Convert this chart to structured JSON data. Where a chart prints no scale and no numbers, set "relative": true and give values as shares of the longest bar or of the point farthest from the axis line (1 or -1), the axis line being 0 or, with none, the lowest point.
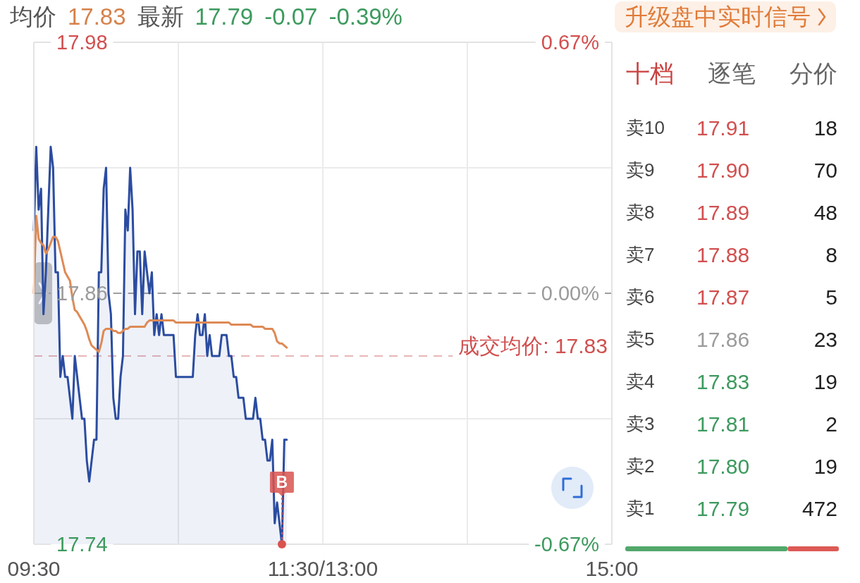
{
  "chart_data": [
    {
      "type": "area",
      "annotations": [
        "均价",
        "17.83",
        "最新",
        "17.79",
        "-0.07",
        "-0.39%",
        "升级盘中实时信号",
        {
          "text": "B",
          "y": 17.74
        }
      ],
      "categories": [
        "09:30",
        null,
        null,
        null,
        null,
        null,
        null,
        null,
        null,
        null,
        null,
        null,
        null,
        null,
        null,
        null,
        null,
        null,
        null,
        null,
        null,
        null,
        null,
        null,
        null,
        null,
        null,
        null,
        null,
        null,
        null,
        null,
        null,
        null,
        null,
        null,
        null,
        null,
        null,
        null,
        null,
        null,
        null,
        null,
        null,
        null,
        null,
        null,
        null,
        null,
        null,
        null,
        null,
        null,
        null,
        null,
        null,
        null,
        null,
        null,
        null,
        null,
        null,
        null,
        null,
        null,
        null,
        null,
        null,
        null,
        null,
        null,
        null,
        null,
        null,
        null,
        null,
        null,
        null,
        null,
        null,
        null,
        null,
        null,
        null,
        null,
        null,
        null,
        null,
        null,
        null,
        null,
        null,
        null,
        null,
        null,
        null,
        null,
        null,
        null,
        null,
        null,
        null,
        null,
        null,
        null,
        null,
        null,
        null,
        null,
        null,
        null,
        null,
        null,
        null,
        null,
        null,
        null,
        null,
        null,
        "11:30/13:00",
        null,
        null,
        null,
        null,
        null,
        null,
        null,
        null,
        null,
        null,
        null,
        null,
        null,
        null,
        null,
        null,
        null,
        null,
        null,
        null,
        null,
        null,
        null,
        null,
        null,
        null,
        null,
        null,
        null,
        null,
        null,
        null,
        null,
        null,
        null,
        null,
        null,
        null,
        null,
        null,
        null,
        null,
        null,
        null,
        null,
        null,
        null,
        null,
        null,
        null,
        null,
        null,
        null,
        null,
        null,
        null,
        null,
        null,
        null,
        null,
        null,
        null,
        null,
        null,
        null,
        null,
        null,
        null,
        null,
        null,
        null,
        null,
        null,
        null,
        null,
        null,
        null,
        null,
        null,
        null,
        null,
        null,
        null,
        null,
        null,
        null,
        null,
        null,
        null,
        null,
        null,
        null,
        null,
        null,
        null,
        null,
        null,
        null,
        null,
        null,
        null,
        null,
        null,
        null,
        null,
        null,
        null,
        null,
        null,
        null,
        null,
        null,
        null,
        null,
        null,
        null,
        null,
        null,
        null,
        "15:00"
      ],
      "ylim": [
        17.74,
        17.98
      ],
      "yticks": [
        17.74,
        {
          "value": 17.8,
          "label": null
        },
        17.86,
        {
          "value": 17.92,
          "label": null
        },
        17.98
      ],
      "y2lim": [
        -0.67,
        0.67
      ],
      "y2ticks": [
        {
          "value": -0.67,
          "label": "-0.67%"
        },
        {
          "value": 0,
          "label": "0.00%"
        },
        {
          "value": 0.67,
          "label": "0.67%"
        }
      ],
      "grid": true,
      "ref_lines": [
        {
          "axis": "y",
          "value": 17.86,
          "color": "#9e9e9e",
          "line_style": "dashed"
        },
        {
          "axis": "y",
          "value": 17.83,
          "label": "成交均价: 17.83",
          "color": "#e8b6b8",
          "line_style": "dashed"
        }
      ],
      "series": [
        {
          "type": "area",
          "color": "#2b4ca0",
          "values": [
            17.89,
            17.93,
            17.9,
            17.91,
            17.85,
            17.87,
            17.9,
            17.93,
            17.92,
            17.87,
            17.87,
            17.82,
            17.83,
            17.82,
            17.82,
            17.81,
            17.8,
            17.83,
            17.82,
            17.81,
            17.8,
            17.8,
            17.78,
            17.77,
            17.78,
            17.79,
            17.79,
            17.87,
            17.87,
            17.91,
            17.92,
            17.86,
            17.85,
            17.81,
            17.8,
            17.8,
            17.82,
            17.83,
            17.9,
            17.89,
            17.92,
            17.9,
            17.85,
            17.88,
            17.88,
            17.85,
            17.88,
            17.87,
            17.86,
            17.87,
            17.84,
            17.85,
            17.84,
            17.85,
            17.84,
            17.84,
            17.84,
            17.84,
            17.84,
            17.82,
            17.82,
            17.82,
            17.82,
            17.82,
            17.82,
            17.82,
            17.82,
            17.84,
            17.85,
            17.84,
            17.84,
            17.85,
            17.83,
            17.84,
            17.83,
            17.83,
            17.83,
            17.83,
            17.84,
            17.84,
            17.84,
            17.83,
            17.83,
            17.82,
            17.82,
            17.81,
            17.81,
            17.81,
            17.8,
            17.8,
            17.8,
            17.8,
            17.81,
            17.8,
            17.8,
            17.79,
            17.79,
            17.78,
            17.78,
            17.79,
            17.75,
            17.76,
            17.75,
            17.74,
            17.79,
            17.79,
            null,
            null,
            null,
            null,
            null,
            null,
            null,
            null,
            null,
            null,
            null,
            null,
            null,
            null,
            null,
            null,
            null,
            null,
            null,
            null,
            null,
            null,
            null,
            null,
            null,
            null,
            null,
            null,
            null,
            null,
            null,
            null,
            null,
            null,
            null,
            null,
            null,
            null,
            null,
            null,
            null,
            null,
            null,
            null,
            null,
            null,
            null,
            null,
            null,
            null,
            null,
            null,
            null,
            null,
            null,
            null,
            null,
            null,
            null,
            null,
            null,
            null,
            null,
            null,
            null,
            null,
            null,
            null,
            null,
            null,
            null,
            null,
            null,
            null,
            null,
            null,
            null,
            null,
            null,
            null,
            null,
            null,
            null,
            null,
            null,
            null,
            null,
            null,
            null,
            null,
            null,
            null,
            null,
            null,
            null,
            null,
            null,
            null,
            null,
            null,
            null,
            null,
            null,
            null,
            null,
            null,
            null,
            null,
            null,
            null,
            null,
            null,
            null,
            null,
            null,
            null,
            null,
            null,
            null,
            null,
            null,
            null,
            null,
            null,
            null,
            null,
            null,
            null,
            null,
            null,
            null,
            null,
            null,
            null,
            null
          ]
        },
        {
          "type": "line",
          "color": "#de8a55",
          "values": [
            17.86,
            17.897,
            17.886,
            17.884,
            17.883,
            17.879,
            17.881,
            17.884,
            17.887,
            17.887,
            17.885,
            17.88,
            17.875,
            17.87,
            17.868,
            17.866,
            17.858,
            17.852,
            17.851,
            17.849,
            17.847,
            17.845,
            17.842,
            17.838,
            17.835,
            17.834,
            17.833,
            17.832,
            17.836,
            17.842,
            17.843,
            17.843,
            17.843,
            17.842,
            17.842,
            17.841,
            17.841,
            17.842,
            17.843,
            17.843,
            17.844,
            17.844,
            17.844,
            17.844,
            17.844,
            17.844,
            17.844,
            17.846,
            17.847,
            17.847,
            17.847,
            17.847,
            17.847,
            17.847,
            17.847,
            17.847,
            17.847,
            17.847,
            17.847,
            17.846,
            17.846,
            17.846,
            17.846,
            17.846,
            17.846,
            17.846,
            17.846,
            17.846,
            17.846,
            17.846,
            17.846,
            17.846,
            17.846,
            17.846,
            17.846,
            17.846,
            17.846,
            17.846,
            17.846,
            17.846,
            17.846,
            17.846,
            17.845,
            17.845,
            17.845,
            17.845,
            17.845,
            17.845,
            17.845,
            17.845,
            17.845,
            17.844,
            17.844,
            17.844,
            17.844,
            17.844,
            17.843,
            17.843,
            17.843,
            17.843,
            17.841,
            17.837,
            17.836,
            17.836,
            17.835,
            17.834,
            null,
            null,
            null,
            null,
            null,
            null,
            null,
            null,
            null,
            null,
            null,
            null,
            null,
            null,
            null,
            null,
            null,
            null,
            null,
            null,
            null,
            null,
            null,
            null,
            null,
            null,
            null,
            null,
            null,
            null,
            null,
            null,
            null,
            null,
            null,
            null,
            null,
            null,
            null,
            null,
            null,
            null,
            null,
            null,
            null,
            null,
            null,
            null,
            null,
            null,
            null,
            null,
            null,
            null,
            null,
            null,
            null,
            null,
            null,
            null,
            null,
            null,
            null,
            null,
            null,
            null,
            null,
            null,
            null,
            null,
            null,
            null,
            null,
            null,
            null,
            null,
            null,
            null,
            null,
            null,
            null,
            null,
            null,
            null,
            null,
            null,
            null,
            null,
            null,
            null,
            null,
            null,
            null,
            null,
            null,
            null,
            null,
            null,
            null,
            null,
            null,
            null,
            null,
            null,
            null,
            null,
            null,
            null,
            null,
            null,
            null,
            null,
            null,
            null,
            null,
            null,
            null,
            null,
            null,
            null,
            null,
            null,
            null,
            null,
            null,
            null,
            null,
            null,
            null,
            null,
            null,
            null,
            null,
            null,
            null
          ]
        }
      ]
    },
    {
      "type": "other",
      "annotations": [
        "十档",
        "逐笔",
        "分价"
      ],
      "categories": [
        "卖10",
        "卖9",
        "卖8",
        "卖7",
        "卖6",
        "卖5",
        "卖4",
        "卖3",
        "卖2",
        "卖1"
      ],
      "data_labels": true,
      "series": [
        {
          "values": [
            17.91,
            17.9,
            17.89,
            17.88,
            17.87,
            17.86,
            17.83,
            17.81,
            17.8,
            17.79
          ],
          "value_labels": [
            "17.91",
            "17.90",
            "17.89",
            "17.88",
            "17.87",
            "17.86",
            "17.83",
            "17.81",
            "17.80",
            "17.79"
          ],
          "colors": [
            "#d24f4f",
            "#d24f4f",
            "#d24f4f",
            "#d24f4f",
            "#d24f4f",
            "#9b9b9b",
            "#3d9a5e",
            "#3d9a5e",
            "#3d9a5e",
            "#3d9a5e"
          ]
        },
        {
          "values": [
            18,
            70,
            48,
            8,
            5,
            23,
            19,
            2,
            19,
            472
          ],
          "color": "#222222"
        }
      ]
    },
    {
      "type": "bar",
      "orientation": "horizontal",
      "stacked": true,
      "relative": true,
      "categories": [
        null
      ],
      "series": [
        {
          "color": "#52a86b",
          "values": [
            0.76
          ]
        },
        {
          "color": "#dd5a55",
          "values": [
            0.24
          ]
        }
      ]
    }
  ]
}
